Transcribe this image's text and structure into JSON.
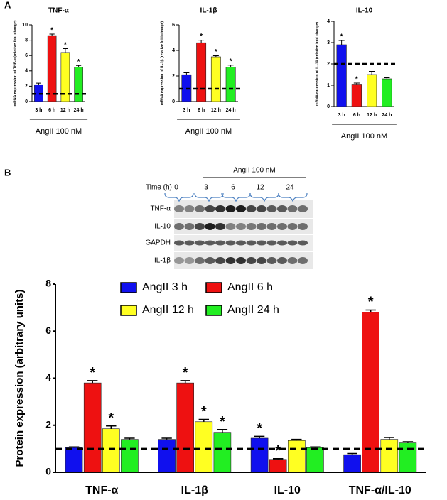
{
  "panels": [
    "A",
    "B"
  ],
  "blot": {
    "time_label": "Time (h)",
    "treatment": "AngII 100 nM",
    "lanes": [
      "0",
      "3",
      "6",
      "12",
      "24"
    ],
    "rows": [
      "TNF-α",
      "IL-10",
      "GAPDH",
      "IL-1β"
    ]
  },
  "chart_data": [
    {
      "type": "bar",
      "title": "TNF-α",
      "ylabel": "mRNA expression of TNF-α (relative fold change)",
      "xlabel": "AngII 100 nM",
      "categories": [
        "3 h",
        "6 h",
        "12 h",
        "24 h"
      ],
      "values": [
        2.2,
        8.6,
        6.4,
        4.5
      ],
      "errors": [
        0.2,
        0.2,
        0.5,
        0.2
      ],
      "significance": [
        null,
        "*",
        "*",
        "*"
      ],
      "colors": [
        "#1010ee",
        "#ee1111",
        "#ffff22",
        "#22ee22"
      ],
      "ylim": [
        0,
        10
      ],
      "yticks": [
        0,
        2,
        4,
        6,
        8,
        10
      ],
      "reference_line": 1
    },
    {
      "type": "bar",
      "title": "IL-1β",
      "ylabel": "mRNA expression of IL-1β (relative fold change)",
      "xlabel": "AngII 100 nM",
      "categories": [
        "3 h",
        "6 h",
        "12 h",
        "24 h"
      ],
      "values": [
        2.1,
        4.6,
        3.5,
        2.7
      ],
      "errors": [
        0.15,
        0.2,
        0.08,
        0.15
      ],
      "significance": [
        null,
        "*",
        "*",
        "*"
      ],
      "colors": [
        "#1010ee",
        "#ee1111",
        "#ffff22",
        "#22ee22"
      ],
      "ylim": [
        0,
        6
      ],
      "yticks": [
        0,
        2,
        4,
        6
      ],
      "reference_line": 1
    },
    {
      "type": "bar",
      "title": "IL-10",
      "ylabel": "mRNA expression of IL-10 (relative fold change)",
      "xlabel": "AngII 100 nM",
      "categories": [
        "3 h",
        "6 h",
        "12 h",
        "24 h"
      ],
      "values": [
        2.9,
        1.05,
        1.5,
        1.3
      ],
      "errors": [
        0.2,
        0.05,
        0.15,
        0.05
      ],
      "significance": [
        "*",
        "*",
        null,
        null
      ],
      "colors": [
        "#1010ee",
        "#ee1111",
        "#ffff22",
        "#22ee22"
      ],
      "ylim": [
        0,
        4
      ],
      "yticks": [
        0,
        1,
        2,
        3,
        4
      ],
      "reference_line": 2
    },
    {
      "type": "bar",
      "ylabel": "Protein expression (arbitrary units)",
      "categories": [
        "TNF-α",
        "IL-1β",
        "IL-10",
        "TNF-α/IL-10"
      ],
      "series": [
        {
          "name": "AngII 3 h",
          "color": "#1010ee",
          "values": [
            1.05,
            1.4,
            1.45,
            0.75
          ],
          "errors": [
            0.03,
            0.05,
            0.08,
            0.05
          ],
          "significance": [
            null,
            null,
            "*",
            null
          ]
        },
        {
          "name": "AngII 6 h",
          "color": "#ee1111",
          "values": [
            3.8,
            3.8,
            0.55,
            6.8
          ],
          "errors": [
            0.1,
            0.1,
            0.03,
            0.1
          ],
          "significance": [
            "*",
            "*",
            "*",
            "*"
          ]
        },
        {
          "name": "AngII 12 h",
          "color": "#ffff22",
          "values": [
            1.85,
            2.15,
            1.35,
            1.4
          ],
          "errors": [
            0.12,
            0.1,
            0.05,
            0.08
          ],
          "significance": [
            "*",
            "*",
            null,
            null
          ]
        },
        {
          "name": "AngII 24 h",
          "color": "#22ee22",
          "values": [
            1.4,
            1.7,
            1.05,
            1.25
          ],
          "errors": [
            0.05,
            0.12,
            0.03,
            0.05
          ],
          "significance": [
            null,
            "*",
            null,
            null
          ]
        }
      ],
      "ylim": [
        0,
        8
      ],
      "yticks": [
        0,
        2,
        4,
        6,
        8
      ],
      "reference_line": 1
    }
  ]
}
